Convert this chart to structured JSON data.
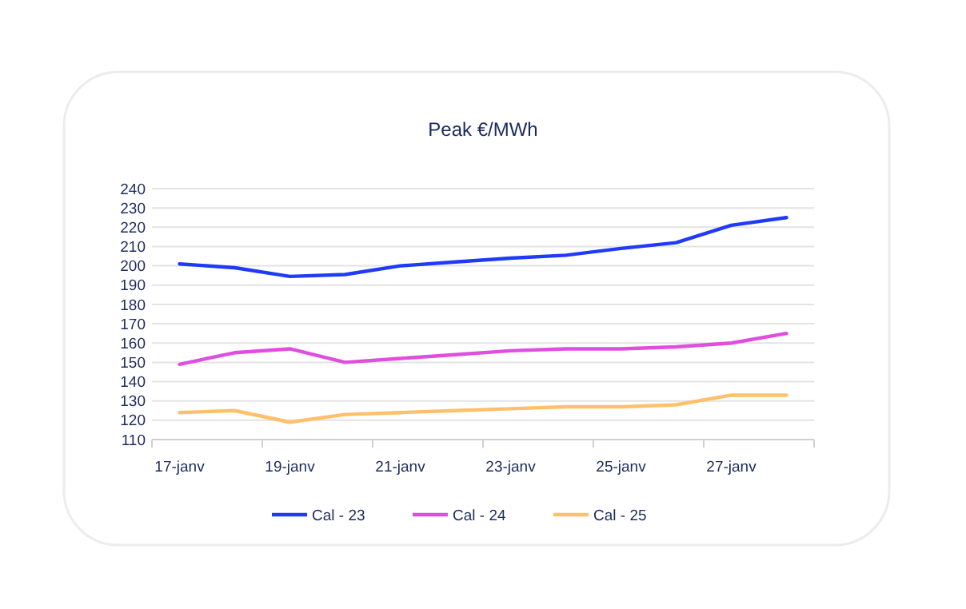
{
  "chart_data": {
    "type": "line",
    "title": "Peak €/MWh",
    "categories": [
      "17-janv",
      null,
      "19-janv",
      null,
      "21-janv",
      null,
      "23-janv",
      null,
      "25-janv",
      null,
      "27-janv",
      null
    ],
    "series": [
      {
        "name": "Cal - 23",
        "color": "#1f3bf5",
        "values": [
          201,
          199,
          194.5,
          195.5,
          200,
          202,
          204,
          205.5,
          209,
          212,
          221,
          225
        ]
      },
      {
        "name": "Cal - 24",
        "color": "#e04ee0",
        "values": [
          149,
          155,
          157,
          150,
          152,
          154,
          156,
          157,
          157,
          158,
          160,
          165
        ]
      },
      {
        "name": "Cal - 25",
        "color": "#ffc06b",
        "values": [
          124,
          125,
          119,
          123,
          124,
          125,
          126,
          127,
          127,
          128,
          133,
          133
        ]
      }
    ],
    "ylim": [
      110,
      240
    ],
    "yticks": [
      110,
      120,
      130,
      140,
      150,
      160,
      170,
      180,
      190,
      200,
      210,
      220,
      230,
      240
    ],
    "grid": "y",
    "legend": "bottom",
    "marker": "none",
    "line_style": "solid"
  }
}
